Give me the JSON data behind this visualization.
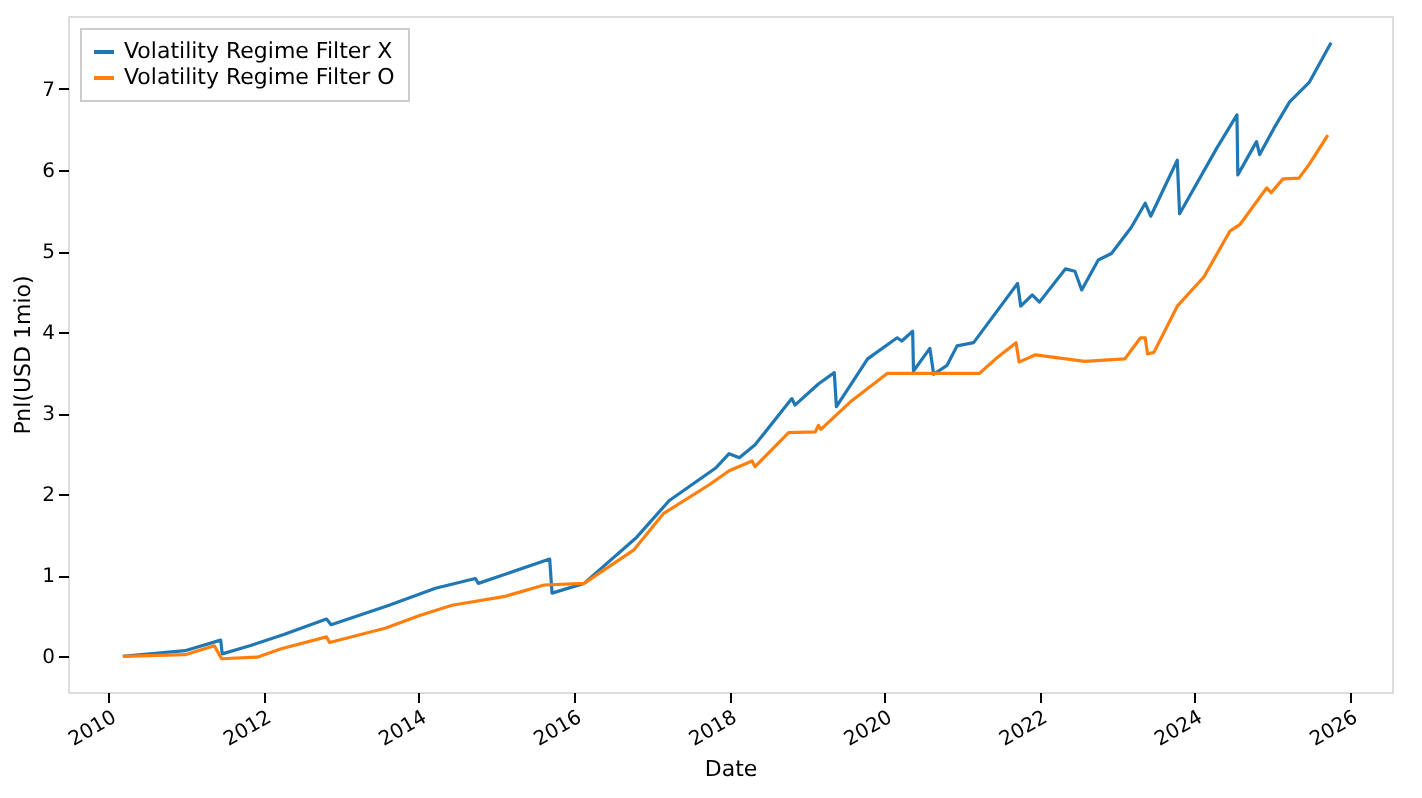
{
  "chart_data": {
    "type": "line",
    "xlabel": "Date",
    "ylabel": "Pnl(USD 1mio)",
    "xlim": [
      "2009-06-24",
      "2026-07-19"
    ],
    "xticks": [
      "2010",
      "2012",
      "2014",
      "2016",
      "2018",
      "2020",
      "2022",
      "2024",
      "2026"
    ],
    "ylim": [
      -0.44,
      7.9
    ],
    "yticks": [
      0,
      1,
      2,
      3,
      4,
      5,
      6,
      7
    ],
    "grid": false,
    "legend": "top left",
    "line_style": "solid",
    "marker": "none",
    "series": [
      {
        "name": "Volatility Regime Filter X",
        "color": "#1f77b4",
        "x": [
          "2010-03-09",
          "2010-12-27",
          "2011-06-13",
          "2011-06-20",
          "2011-10-28",
          "2012-04-05",
          "2012-10-23",
          "2012-11-14",
          "2013-08-14",
          "2014-03-20",
          "2014-09-24",
          "2014-10-08",
          "2015-09-09",
          "2015-09-20",
          "2016-02-18",
          "2016-10-23",
          "2017-03-24",
          "2017-10-28",
          "2018-01-01",
          "2018-02-18",
          "2018-05-03",
          "2018-10-23",
          "2018-11-07",
          "2019-02-25",
          "2019-05-11",
          "2019-05-21",
          "2019-10-15",
          "2020-03-02",
          "2020-03-24",
          "2020-05-14",
          "2020-05-18",
          "2020-08-03",
          "2020-08-21",
          "2020-10-23",
          "2020-12-09",
          "2021-02-25",
          "2021-09-20",
          "2021-10-05",
          "2021-11-28",
          "2022-01-01",
          "2022-05-03",
          "2022-06-17",
          "2022-07-19",
          "2022-10-05",
          "2022-12-06",
          "2023-03-09",
          "2023-05-14",
          "2023-06-09",
          "2023-10-12",
          "2023-10-23",
          "2024-04-15",
          "2024-07-19",
          "2024-07-23",
          "2024-10-19",
          "2024-11-03",
          "2025-01-08",
          "2025-03-24",
          "2025-06-24",
          "2025-10-05"
        ],
        "values": [
          0,
          0.07,
          0.2,
          0.03,
          0.13,
          0.27,
          0.46,
          0.39,
          0.63,
          0.84,
          0.96,
          0.9,
          1.2,
          0.78,
          0.9,
          1.47,
          1.92,
          2.32,
          2.5,
          2.45,
          2.61,
          3.18,
          3.1,
          3.36,
          3.5,
          3.08,
          3.67,
          3.93,
          3.89,
          4.01,
          3.52,
          3.8,
          3.48,
          3.59,
          3.83,
          3.87,
          4.6,
          4.32,
          4.46,
          4.37,
          4.78,
          4.75,
          4.52,
          4.89,
          4.97,
          5.29,
          5.59,
          5.43,
          6.12,
          5.46,
          6.27,
          6.68,
          5.94,
          6.35,
          6.19,
          6.51,
          6.84,
          7.08,
          7.57
        ]
      },
      {
        "name": "Volatility Regime Filter O",
        "color": "#ff7f0e",
        "x": [
          "2010-03-09",
          "2010-12-27",
          "2011-05-14",
          "2011-06-17",
          "2011-12-02",
          "2012-03-20",
          "2012-10-23",
          "2012-11-07",
          "2013-07-30",
          "2014-01-01",
          "2014-06-06",
          "2015-02-11",
          "2015-08-14",
          "2016-02-18",
          "2016-10-08",
          "2017-02-25",
          "2017-10-01",
          "2018-01-01",
          "2018-04-19",
          "2018-05-03",
          "2018-10-08",
          "2019-02-11",
          "2019-02-25",
          "2019-03-09",
          "2019-07-26",
          "2020-01-15",
          "2021-03-24",
          "2021-06-09",
          "2021-09-13",
          "2021-09-27",
          "2021-12-13",
          "2022-08-03",
          "2023-02-07",
          "2023-04-22",
          "2023-05-14",
          "2023-05-25",
          "2023-06-24",
          "2023-10-12",
          "2024-02-14",
          "2024-06-17",
          "2024-08-03",
          "2024-12-06",
          "2024-12-27",
          "2025-02-21",
          "2025-05-07",
          "2025-06-24",
          "2025-09-20"
        ],
        "values": [
          0,
          0.02,
          0.13,
          -0.03,
          -0.01,
          0.09,
          0.24,
          0.17,
          0.35,
          0.5,
          0.63,
          0.74,
          0.88,
          0.9,
          1.31,
          1.76,
          2.12,
          2.29,
          2.41,
          2.34,
          2.76,
          2.77,
          2.85,
          2.8,
          3.14,
          3.49,
          3.49,
          3.67,
          3.87,
          3.63,
          3.72,
          3.64,
          3.67,
          3.93,
          3.93,
          3.73,
          3.75,
          4.32,
          4.68,
          5.25,
          5.33,
          5.78,
          5.72,
          5.89,
          5.9,
          6.07,
          6.43
        ]
      }
    ]
  }
}
